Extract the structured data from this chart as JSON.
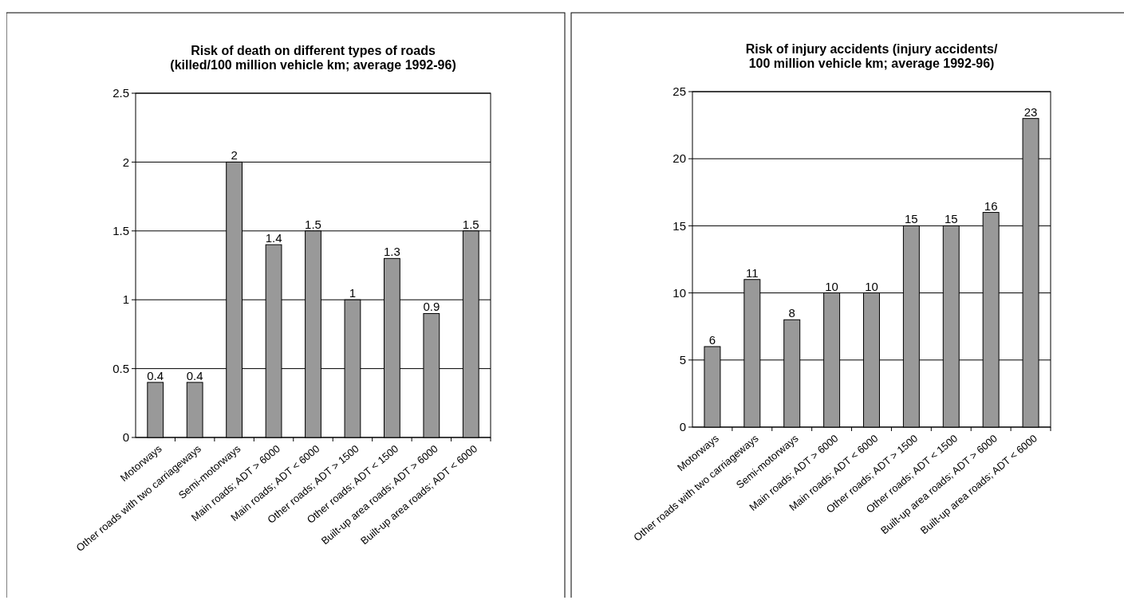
{
  "chart_data": [
    {
      "type": "bar",
      "title": "Risk of death on different types of roads\n(killed/100 million vehicle km; average 1992-96)",
      "categories": [
        "Motorways",
        "Other roads with two carriageways",
        "Semi-motorways",
        "Main roads; ADT > 6000",
        "Main roads; ADT < 6000",
        "Other roads; ADT > 1500",
        "Other roads; ADT < 1500",
        "Built-up area roads; ADT > 6000",
        "Built-up area roads; ADT < 6000"
      ],
      "values": [
        0.4,
        0.4,
        2,
        1.4,
        1.5,
        1,
        1.3,
        0.9,
        1.5
      ],
      "color": "#999999",
      "ylim": [
        0,
        2.5
      ],
      "yticks": [
        0,
        0.5,
        1,
        1.5,
        2,
        2.5
      ],
      "grid": "y",
      "data_labels": true
    },
    {
      "type": "bar",
      "title": "Risk of injury accidents (injury accidents/\n100 million vehicle km; average 1992-96)",
      "categories": [
        "Motorways",
        "Other roads with two carriageways",
        "Semi-motorways",
        "Main roads; ADT > 6000",
        "Main roads; ADT < 6000",
        "Other roads; ADT > 1500",
        "Other roads; ADT < 1500",
        "Built-up area roads; ADT > 6000",
        "Built-up area roads; ADT < 6000"
      ],
      "values": [
        6,
        11,
        8,
        10,
        10,
        15,
        15,
        16,
        23
      ],
      "color": "#999999",
      "ylim": [
        0,
        25
      ],
      "yticks": [
        0,
        5,
        10,
        15,
        20,
        25
      ],
      "grid": "y",
      "data_labels": true
    }
  ]
}
